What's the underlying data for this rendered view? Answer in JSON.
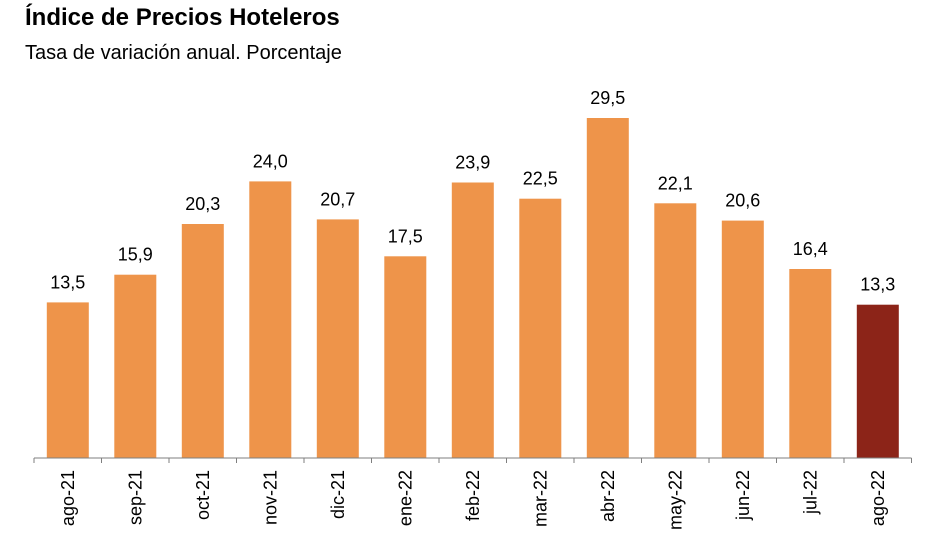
{
  "chart_data": {
    "type": "bar",
    "title": "Índice de Precios Hoteleros",
    "subtitle": "Tasa de variación anual. Porcentaje",
    "categories": [
      "ago-21",
      "sep-21",
      "oct-21",
      "nov-21",
      "dic-21",
      "ene-22",
      "feb-22",
      "mar-22",
      "abr-22",
      "may-22",
      "jun-22",
      "jul-22",
      "ago-22"
    ],
    "values": [
      13.5,
      15.9,
      20.3,
      24.0,
      20.7,
      17.5,
      23.9,
      22.5,
      29.5,
      22.1,
      20.6,
      16.4,
      13.3
    ],
    "value_labels": [
      "13,5",
      "15,9",
      "20,3",
      "24,0",
      "20,7",
      "17,5",
      "23,9",
      "22,5",
      "29,5",
      "22,1",
      "20,6",
      "16,4",
      "13,3"
    ],
    "ylim": [
      0,
      29.5
    ],
    "grid": false,
    "legend": "none",
    "colors": {
      "bar": "#EE944A",
      "highlight": "#8C2418"
    },
    "highlight_index": 12
  }
}
